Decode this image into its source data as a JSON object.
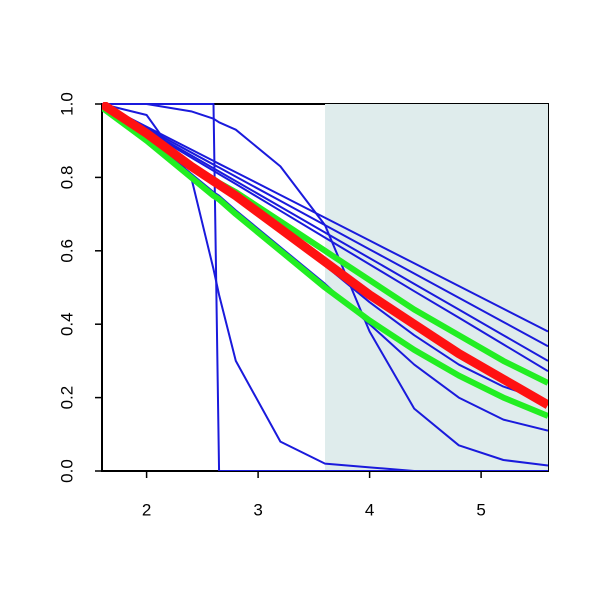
{
  "chart_data": {
    "type": "line",
    "x": [
      1.6,
      2.0,
      2.4,
      2.6,
      2.65,
      2.8,
      3.2,
      3.6,
      4.0,
      4.4,
      4.8,
      5.2,
      5.6
    ],
    "xlim": [
      1.6,
      5.6
    ],
    "ylim": [
      0,
      1
    ],
    "xticks": [
      2,
      3,
      4,
      5
    ],
    "yticks": [
      {
        "value": 0,
        "label": "0.0"
      },
      0.2,
      0.4,
      0.6,
      0.8,
      {
        "value": 1,
        "label": "1.0"
      }
    ],
    "shade_from": 3.6,
    "shade_color": "#dfecec",
    "series": [
      {
        "color": "#1a1adc",
        "linewidth": 2,
        "values": [
          1,
          1,
          1,
          1,
          0,
          0,
          0,
          0,
          0,
          0,
          0,
          0,
          0
        ]
      },
      {
        "color": "#1a1adc",
        "linewidth": 2,
        "values": [
          1,
          0.97,
          0.8,
          0.55,
          0.48,
          0.3,
          0.08,
          0.02,
          0.01,
          0,
          0,
          0,
          0
        ]
      },
      {
        "color": "#1a1adc",
        "linewidth": 2,
        "values": [
          1,
          1,
          0.98,
          0.96,
          0.95,
          0.93,
          0.83,
          0.67,
          0.38,
          0.17,
          0.07,
          0.03,
          0.015
        ]
      },
      {
        "color": "#1a1adc",
        "linewidth": 2,
        "values": [
          1,
          0.938,
          0.876,
          0.845,
          0.837,
          0.814,
          0.752,
          0.69,
          0.628,
          0.566,
          0.504,
          0.442,
          0.38
        ]
      },
      {
        "color": "#1a1adc",
        "linewidth": 2,
        "values": [
          1,
          0.934,
          0.868,
          0.835,
          0.827,
          0.802,
          0.736,
          0.67,
          0.604,
          0.538,
          0.472,
          0.406,
          0.34
        ]
      },
      {
        "color": "#1a1adc",
        "linewidth": 2,
        "values": [
          1,
          0.93,
          0.86,
          0.825,
          0.816,
          0.79,
          0.72,
          0.65,
          0.58,
          0.51,
          0.44,
          0.37,
          0.3
        ]
      },
      {
        "color": "#1a1adc",
        "linewidth": 2,
        "values": [
          1,
          0.927,
          0.854,
          0.818,
          0.809,
          0.782,
          0.709,
          0.636,
          0.563,
          0.49,
          0.418,
          0.345,
          0.272
        ]
      },
      {
        "color": "#1a1adc",
        "linewidth": 2,
        "values": [
          1,
          0.92,
          0.83,
          0.79,
          0.78,
          0.74,
          0.65,
          0.56,
          0.46,
          0.37,
          0.29,
          0.23,
          0.19
        ]
      },
      {
        "color": "#1a1adc",
        "linewidth": 2,
        "values": [
          1,
          0.91,
          0.81,
          0.76,
          0.75,
          0.71,
          0.61,
          0.51,
          0.4,
          0.29,
          0.2,
          0.14,
          0.11
        ]
      },
      {
        "color": "#22ee22",
        "linewidth": 6,
        "values": [
          0.99,
          0.9,
          0.8,
          0.75,
          0.74,
          0.7,
          0.6,
          0.5,
          0.41,
          0.33,
          0.26,
          0.2,
          0.15
        ]
      },
      {
        "color": "#22ee22",
        "linewidth": 6,
        "values": [
          0.99,
          0.91,
          0.83,
          0.795,
          0.785,
          0.76,
          0.68,
          0.6,
          0.52,
          0.44,
          0.37,
          0.3,
          0.24
        ]
      },
      {
        "color": "#ff1111",
        "linewidth": 9,
        "values": [
          1,
          0.92,
          0.83,
          0.79,
          0.78,
          0.75,
          0.66,
          0.57,
          0.48,
          0.4,
          0.32,
          0.25,
          0.18
        ]
      }
    ]
  }
}
